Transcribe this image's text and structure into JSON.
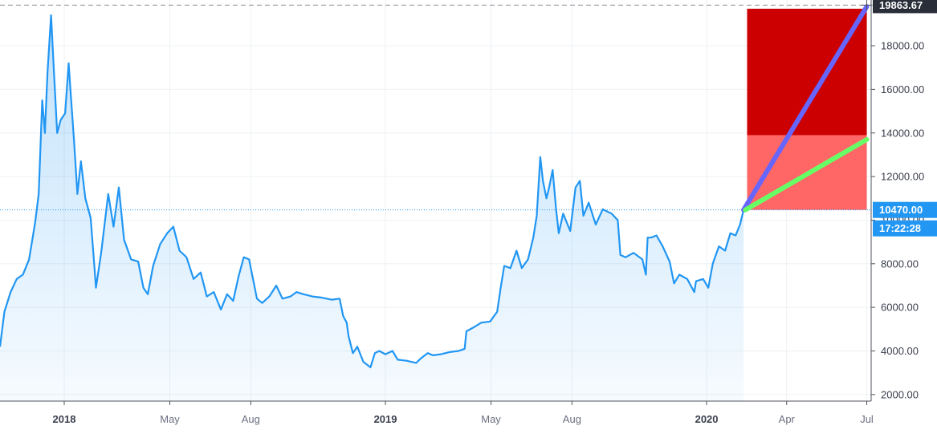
{
  "chart_data": {
    "type": "line",
    "title": "",
    "xlabel": "",
    "ylabel": "",
    "x_range": [
      "2017-10-20",
      "2020-07-06"
    ],
    "ylim": [
      1700,
      20100
    ],
    "grid": true,
    "y_ticks": [
      2000,
      4000,
      6000,
      8000,
      10000,
      12000,
      14000,
      16000,
      18000
    ],
    "y_tick_labels": [
      "2000.00",
      "4000.00",
      "6000.00",
      "8000.00",
      "10000.00",
      "12000.00",
      "14000.00",
      "16000.00",
      "18000.00"
    ],
    "x_ticks": [
      {
        "date": "2018-01-01",
        "label": "2018",
        "major": true
      },
      {
        "date": "2018-05-01",
        "label": "May",
        "major": false
      },
      {
        "date": "2018-08-01",
        "label": "Aug",
        "major": false
      },
      {
        "date": "2019-01-01",
        "label": "2019",
        "major": true
      },
      {
        "date": "2019-05-01",
        "label": "May",
        "major": false
      },
      {
        "date": "2019-08-01",
        "label": "Aug",
        "major": false
      },
      {
        "date": "2020-01-01",
        "label": "2020",
        "major": true
      },
      {
        "date": "2020-04-01",
        "label": "Apr",
        "major": false
      },
      {
        "date": "2020-07-01",
        "label": "Jul",
        "major": false
      }
    ],
    "series": [
      {
        "color": "#2196f3",
        "points": [
          [
            "2017-10-20",
            4200
          ],
          [
            "2017-10-25",
            5800
          ],
          [
            "2017-11-01",
            6700
          ],
          [
            "2017-11-08",
            7300
          ],
          [
            "2017-11-15",
            7500
          ],
          [
            "2017-11-22",
            8200
          ],
          [
            "2017-11-29",
            9900
          ],
          [
            "2017-12-03",
            11200
          ],
          [
            "2017-12-07",
            15500
          ],
          [
            "2017-12-10",
            14000
          ],
          [
            "2017-12-13",
            16800
          ],
          [
            "2017-12-17",
            19400
          ],
          [
            "2017-12-20",
            17000
          ],
          [
            "2017-12-24",
            14000
          ],
          [
            "2017-12-28",
            14600
          ],
          [
            "2018-01-02",
            14900
          ],
          [
            "2018-01-06",
            17200
          ],
          [
            "2018-01-08",
            16000
          ],
          [
            "2018-01-12",
            13700
          ],
          [
            "2018-01-16",
            11200
          ],
          [
            "2018-01-20",
            12700
          ],
          [
            "2018-01-25",
            11000
          ],
          [
            "2018-01-31",
            10100
          ],
          [
            "2018-02-04",
            8000
          ],
          [
            "2018-02-06",
            6900
          ],
          [
            "2018-02-12",
            8500
          ],
          [
            "2018-02-20",
            11200
          ],
          [
            "2018-02-26",
            9700
          ],
          [
            "2018-03-04",
            11500
          ],
          [
            "2018-03-10",
            9100
          ],
          [
            "2018-03-18",
            8200
          ],
          [
            "2018-03-26",
            8100
          ],
          [
            "2018-04-01",
            6900
          ],
          [
            "2018-04-06",
            6600
          ],
          [
            "2018-04-12",
            7900
          ],
          [
            "2018-04-20",
            8900
          ],
          [
            "2018-04-28",
            9400
          ],
          [
            "2018-05-05",
            9700
          ],
          [
            "2018-05-12",
            8600
          ],
          [
            "2018-05-20",
            8300
          ],
          [
            "2018-05-28",
            7300
          ],
          [
            "2018-06-05",
            7600
          ],
          [
            "2018-06-12",
            6500
          ],
          [
            "2018-06-20",
            6700
          ],
          [
            "2018-06-28",
            5900
          ],
          [
            "2018-07-05",
            6600
          ],
          [
            "2018-07-12",
            6300
          ],
          [
            "2018-07-18",
            7400
          ],
          [
            "2018-07-24",
            8300
          ],
          [
            "2018-07-30",
            8200
          ],
          [
            "2018-08-08",
            6400
          ],
          [
            "2018-08-14",
            6200
          ],
          [
            "2018-08-22",
            6500
          ],
          [
            "2018-08-30",
            7000
          ],
          [
            "2018-09-06",
            6400
          ],
          [
            "2018-09-15",
            6500
          ],
          [
            "2018-09-22",
            6700
          ],
          [
            "2018-09-30",
            6600
          ],
          [
            "2018-10-10",
            6500
          ],
          [
            "2018-10-20",
            6450
          ],
          [
            "2018-11-01",
            6350
          ],
          [
            "2018-11-10",
            6400
          ],
          [
            "2018-11-14",
            5600
          ],
          [
            "2018-11-18",
            5300
          ],
          [
            "2018-11-20",
            4700
          ],
          [
            "2018-11-25",
            3900
          ],
          [
            "2018-11-30",
            4200
          ],
          [
            "2018-12-07",
            3500
          ],
          [
            "2018-12-15",
            3250
          ],
          [
            "2018-12-20",
            3900
          ],
          [
            "2018-12-25",
            4000
          ],
          [
            "2019-01-01",
            3850
          ],
          [
            "2019-01-09",
            4000
          ],
          [
            "2019-01-15",
            3600
          ],
          [
            "2019-01-25",
            3550
          ],
          [
            "2019-02-05",
            3450
          ],
          [
            "2019-02-10",
            3650
          ],
          [
            "2019-02-18",
            3900
          ],
          [
            "2019-02-24",
            3800
          ],
          [
            "2019-03-05",
            3850
          ],
          [
            "2019-03-15",
            3950
          ],
          [
            "2019-03-25",
            4000
          ],
          [
            "2019-04-01",
            4100
          ],
          [
            "2019-04-03",
            4900
          ],
          [
            "2019-04-12",
            5100
          ],
          [
            "2019-04-20",
            5300
          ],
          [
            "2019-04-30",
            5350
          ],
          [
            "2019-05-08",
            5800
          ],
          [
            "2019-05-12",
            6900
          ],
          [
            "2019-05-16",
            7900
          ],
          [
            "2019-05-23",
            7800
          ],
          [
            "2019-05-30",
            8600
          ],
          [
            "2019-06-05",
            7800
          ],
          [
            "2019-06-12",
            8200
          ],
          [
            "2019-06-18",
            9200
          ],
          [
            "2019-06-22",
            10200
          ],
          [
            "2019-06-26",
            12900
          ],
          [
            "2019-06-29",
            11800
          ],
          [
            "2019-07-03",
            11000
          ],
          [
            "2019-07-06",
            11500
          ],
          [
            "2019-07-10",
            12300
          ],
          [
            "2019-07-14",
            10500
          ],
          [
            "2019-07-17",
            9400
          ],
          [
            "2019-07-22",
            10300
          ],
          [
            "2019-07-30",
            9500
          ],
          [
            "2019-08-05",
            11500
          ],
          [
            "2019-08-10",
            11800
          ],
          [
            "2019-08-14",
            10200
          ],
          [
            "2019-08-20",
            10800
          ],
          [
            "2019-08-28",
            9800
          ],
          [
            "2019-09-05",
            10500
          ],
          [
            "2019-09-15",
            10300
          ],
          [
            "2019-09-22",
            10000
          ],
          [
            "2019-09-25",
            8400
          ],
          [
            "2019-10-01",
            8300
          ],
          [
            "2019-10-10",
            8500
          ],
          [
            "2019-10-20",
            8200
          ],
          [
            "2019-10-24",
            7500
          ],
          [
            "2019-10-26",
            9200
          ],
          [
            "2019-10-30",
            9200
          ],
          [
            "2019-11-05",
            9300
          ],
          [
            "2019-11-12",
            8800
          ],
          [
            "2019-11-20",
            8100
          ],
          [
            "2019-11-25",
            7100
          ],
          [
            "2019-12-01",
            7500
          ],
          [
            "2019-12-10",
            7300
          ],
          [
            "2019-12-18",
            6700
          ],
          [
            "2019-12-20",
            7200
          ],
          [
            "2019-12-28",
            7300
          ],
          [
            "2020-01-03",
            6900
          ],
          [
            "2020-01-08",
            8000
          ],
          [
            "2020-01-15",
            8800
          ],
          [
            "2020-01-22",
            8600
          ],
          [
            "2020-01-28",
            9400
          ],
          [
            "2020-02-03",
            9300
          ],
          [
            "2020-02-08",
            9800
          ],
          [
            "2020-02-12",
            10470
          ]
        ]
      }
    ],
    "price_line": {
      "value": 10470,
      "label": "10470.00",
      "countdown": "17:22:28",
      "color": "#2196f3"
    },
    "top_price_line": {
      "value": 19863.67,
      "label": "19863.67",
      "color": "#9598a1"
    },
    "annotations": {
      "red_zone": {
        "start": "2020-02-16",
        "end": "2020-07-01",
        "y_from": 13900,
        "y_to": 19700,
        "color": "#cc0000"
      },
      "pink_zone": {
        "start": "2020-02-16",
        "end": "2020-07-01",
        "y_from": 10470,
        "y_to": 13900,
        "color": "#ff6666"
      },
      "blue_line": {
        "from": [
          "2020-02-12",
          10470
        ],
        "to": [
          "2020-07-01",
          19800
        ],
        "color": "#6666ff"
      },
      "green_line": {
        "from": [
          "2020-02-14",
          10470
        ],
        "to": [
          "2020-07-01",
          13700
        ],
        "color": "#66ff66"
      }
    }
  }
}
